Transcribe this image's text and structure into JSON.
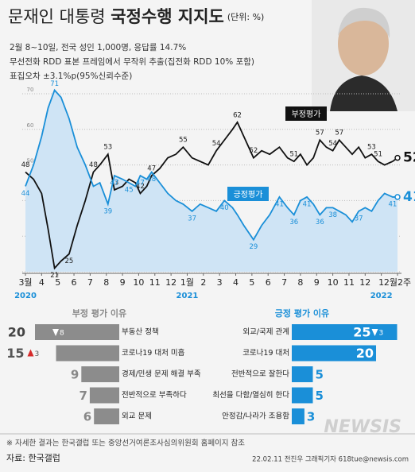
{
  "header": {
    "title_main": "문재인 대통령 ",
    "title_bold": "국정수행 지지도",
    "unit": "(단위: %)",
    "lines": [
      "2월 8~10일, 전국 성인 1,000명, 응답률 14.7%",
      "무선전화 RDD 표본 프레임에서 무작위 추출(집전화 RDD 10% 포함)",
      "표집오차 ±3.1%p(95%신뢰수준)"
    ]
  },
  "chart_data": [
    {
      "type": "line",
      "x": [
        0,
        0.5,
        1,
        1.4,
        1.8,
        2.2,
        2.7,
        3.2,
        3.7,
        4.2,
        4.6,
        5.1,
        5.5,
        6,
        6.4,
        6.8,
        7.1,
        7.5,
        7.8,
        8.3,
        8.8,
        9.3,
        9.75,
        10.3,
        10.8,
        11.3,
        11.8,
        12.3,
        12.8,
        13.1,
        13.5,
        14.1,
        14.6,
        15.1,
        15.7,
        16.2,
        16.6,
        17,
        17.4,
        17.8,
        18.2,
        18.6,
        19,
        19.4,
        19.8,
        20.2,
        20.6,
        21,
        21.4,
        21.8,
        22.2,
        22.7,
        23
      ],
      "series": [
        {
          "name": "부정평가",
          "color": "#111111",
          "values": [
            48,
            46,
            42,
            32,
            21,
            23,
            25,
            33,
            40,
            48,
            50,
            53,
            43,
            44,
            46,
            45,
            42,
            44,
            47,
            49,
            52,
            53,
            55,
            52,
            51,
            50,
            54,
            57,
            60,
            62,
            58,
            52,
            54,
            53,
            55,
            52,
            51,
            53,
            50,
            52,
            57,
            55,
            54,
            57,
            55,
            53,
            55,
            52,
            53,
            51,
            50,
            51,
            52
          ]
        },
        {
          "name": "긍정평가",
          "color": "#1a8fd8",
          "values": [
            44,
            50,
            58,
            66,
            71,
            69,
            63,
            55,
            50,
            44,
            45,
            39,
            47,
            46,
            45,
            44,
            47,
            46,
            48,
            45,
            42,
            40,
            39,
            37,
            39,
            38,
            37,
            40,
            38,
            36,
            33,
            29,
            33,
            36,
            41,
            38,
            36,
            40,
            41,
            39,
            36,
            38,
            38,
            37,
            36,
            34,
            37,
            38,
            37,
            40,
            42,
            41,
            41
          ]
        }
      ],
      "xlim": [
        0,
        23
      ],
      "xticks": [
        {
          "value": 0,
          "label": "3월"
        },
        {
          "value": 1,
          "label": "4"
        },
        {
          "value": 2,
          "label": "5"
        },
        {
          "value": 3,
          "label": "6"
        },
        {
          "value": 4,
          "label": "7"
        },
        {
          "value": 5,
          "label": "8"
        },
        {
          "value": 6,
          "label": "9"
        },
        {
          "value": 7,
          "label": "10"
        },
        {
          "value": 8,
          "label": "11"
        },
        {
          "value": 9,
          "label": "12"
        },
        {
          "value": 10,
          "label": "1월"
        },
        {
          "value": 11,
          "label": "2"
        },
        {
          "value": 12,
          "label": "3"
        },
        {
          "value": 13,
          "label": "4"
        },
        {
          "value": 14,
          "label": "5"
        },
        {
          "value": 15,
          "label": "6"
        },
        {
          "value": 16,
          "label": "7"
        },
        {
          "value": 17,
          "label": "8"
        },
        {
          "value": 18,
          "label": "9"
        },
        {
          "value": 19,
          "label": "10"
        },
        {
          "value": 20,
          "label": "11"
        },
        {
          "value": 21,
          "label": "12"
        },
        {
          "value": 22,
          "label": "1"
        },
        {
          "value": 23,
          "label": "2월2주"
        }
      ],
      "years": [
        {
          "value": 0,
          "label": "2020"
        },
        {
          "value": 10,
          "label": "2021"
        },
        {
          "value": 22,
          "label": "2022"
        }
      ],
      "ylim": [
        20,
        70
      ],
      "yticks": [
        20,
        30,
        40,
        50,
        60,
        70
      ],
      "grid": true
    },
    {
      "type": "bar",
      "title": "부정 평가 이유",
      "color": "#8c8c8c",
      "direction": "left",
      "categories": [
        "부동산 정책",
        "코로나19 대처 미흡",
        "경제/민생 문제 해결 부족",
        "전반적으로 부족하다",
        "외교 문제"
      ],
      "values": [
        20,
        15,
        9,
        7,
        6
      ],
      "change_values": [
        -8,
        3,
        null,
        null,
        null
      ],
      "change_labels": [
        "8",
        "3",
        null,
        null,
        null
      ]
    },
    {
      "type": "bar",
      "title": "긍정 평가 이유",
      "color": "#1a8fd8",
      "direction": "right",
      "categories": [
        "외교/국제 관계",
        "코로나19 대처",
        "전반적으로 잘한다",
        "최선을 다함/열심히 한다",
        "안정감/나라가 조용함"
      ],
      "values": [
        25,
        20,
        5,
        5,
        3
      ],
      "change_values": [
        -3,
        null,
        null,
        null,
        null
      ],
      "change_labels": [
        "3",
        null,
        null,
        null,
        null
      ]
    }
  ],
  "footer": {
    "note": "※ 자세한 결과는 한국갤럽 또는 중앙선거여론조사심의위원회 홈페이지 참조",
    "source": "자료: 한국갤럽",
    "credit": "22.02.11 전진우 그래픽기자 618tue@newsis.com",
    "watermark": "NEWSIS"
  }
}
